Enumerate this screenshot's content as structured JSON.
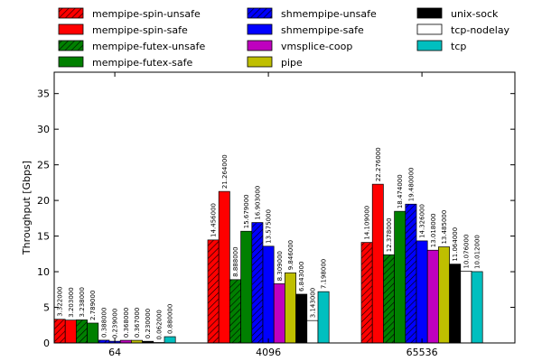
{
  "chart_data": {
    "type": "bar",
    "title": "",
    "xlabel": "",
    "ylabel": "Throughput [Gbps]",
    "ylim": [
      0,
      38
    ],
    "yticks": [
      0,
      5,
      10,
      15,
      20,
      25,
      30,
      35
    ],
    "grid": false,
    "legend_position": "top",
    "categories": [
      "64",
      "4096",
      "65536"
    ],
    "series": [
      {
        "name": "mempipe-spin-unsafe",
        "color": "#ff0000",
        "hatch": true,
        "values": [
          3.322,
          14.456,
          14.109
        ],
        "labels": [
          "3.322000",
          "14.456000",
          "14.109000"
        ]
      },
      {
        "name": "mempipe-spin-safe",
        "color": "#ff0000",
        "hatch": false,
        "values": [
          3.203,
          21.264,
          22.276
        ],
        "labels": [
          "3.203000",
          "21.264000",
          "22.276000"
        ]
      },
      {
        "name": "mempipe-futex-unsafe",
        "color": "#008000",
        "hatch": true,
        "values": [
          3.238,
          8.888,
          12.378
        ],
        "labels": [
          "3.238000",
          "8.888000",
          "12.378000"
        ]
      },
      {
        "name": "mempipe-futex-safe",
        "color": "#008000",
        "hatch": false,
        "values": [
          2.789,
          15.679,
          18.474
        ],
        "labels": [
          "2.789000",
          "15.679000",
          "18.474000"
        ]
      },
      {
        "name": "shmempipe-unsafe",
        "color": "#0000ff",
        "hatch": true,
        "values": [
          0.388,
          16.903,
          19.48
        ],
        "labels": [
          "0.388000",
          "16.903000",
          "19.480000"
        ]
      },
      {
        "name": "shmempipe-safe",
        "color": "#0000ff",
        "hatch": false,
        "values": [
          0.239,
          13.575,
          14.326
        ],
        "labels": [
          "0.239000",
          "13.575000",
          "14.326000"
        ]
      },
      {
        "name": "vmsplice-coop",
        "color": "#bf00bf",
        "hatch": false,
        "values": [
          0.368,
          8.309,
          13.018
        ],
        "labels": [
          "0.368000",
          "8.309000",
          "13.018000"
        ]
      },
      {
        "name": "pipe",
        "color": "#bfbf00",
        "hatch": false,
        "values": [
          0.367,
          9.846,
          13.485
        ],
        "labels": [
          "0.367000",
          "9.846000",
          "13.485000"
        ]
      },
      {
        "name": "unix-sock",
        "color": "#000000",
        "hatch": false,
        "values": [
          0.23,
          6.843,
          11.064
        ],
        "labels": [
          "0.230000",
          "6.843000",
          "11.064000"
        ]
      },
      {
        "name": "tcp-nodelay",
        "color": "#ffffff",
        "hatch": false,
        "values": [
          0.062,
          3.143,
          10.076
        ],
        "labels": [
          "0.062000",
          "3.143000",
          "10.076000"
        ]
      },
      {
        "name": "tcp",
        "color": "#00bfbf",
        "hatch": false,
        "values": [
          0.88,
          7.198,
          10.012
        ],
        "labels": [
          "0.880000",
          "7.198000",
          "10.012000"
        ]
      }
    ]
  }
}
